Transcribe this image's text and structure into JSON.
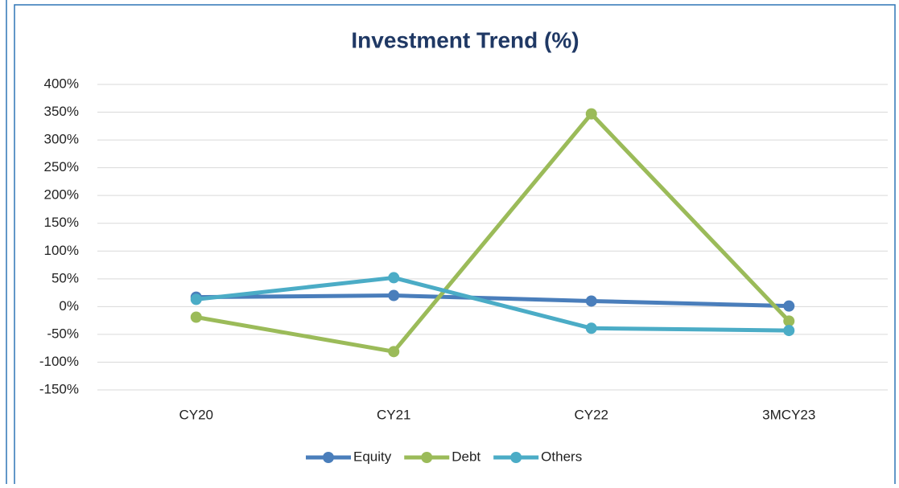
{
  "chart_data": {
    "type": "line",
    "title": "Investment Trend (%)",
    "categories": [
      "CY20",
      "CY21",
      "CY22",
      "3MCY23"
    ],
    "series": [
      {
        "name": "Equity",
        "color": "#4a7ebb",
        "values": [
          17,
          20,
          10,
          1
        ]
      },
      {
        "name": "Debt",
        "color": "#9bbb59",
        "values": [
          -19,
          -81,
          347,
          -26
        ]
      },
      {
        "name": "Others",
        "color": "#4bacc6",
        "values": [
          13,
          52,
          -39,
          -43
        ]
      }
    ],
    "ylim": [
      -150,
      400
    ],
    "yticks": [
      {
        "value": -150,
        "label": "-150%"
      },
      {
        "value": -100,
        "label": "-100%"
      },
      {
        "value": -50,
        "label": "-50%"
      },
      {
        "value": 0,
        "label": "0%"
      },
      {
        "value": 50,
        "label": "50%"
      },
      {
        "value": 100,
        "label": "100%"
      },
      {
        "value": 150,
        "label": "150%"
      },
      {
        "value": 200,
        "label": "200%"
      },
      {
        "value": 250,
        "label": "250%"
      },
      {
        "value": 300,
        "label": "300%"
      },
      {
        "value": 350,
        "label": "350%"
      },
      {
        "value": 400,
        "label": "400%"
      }
    ],
    "grid": true,
    "legend": "bottom"
  }
}
